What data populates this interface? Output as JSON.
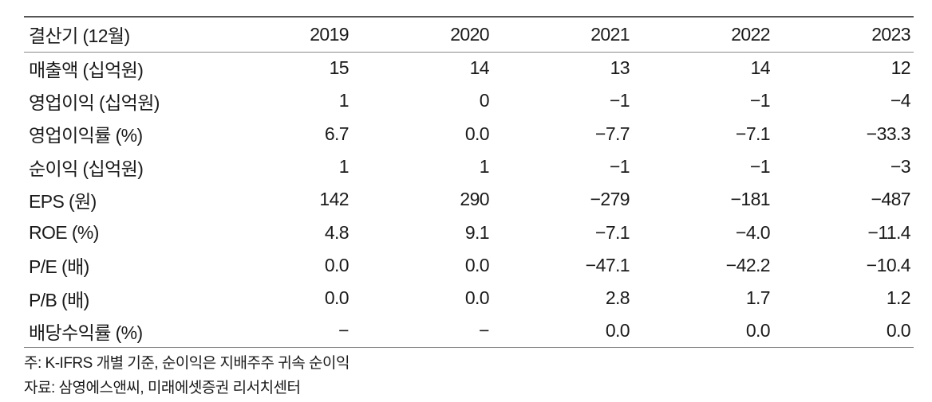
{
  "table": {
    "header": [
      "결산기 (12월)",
      "2019",
      "2020",
      "2021",
      "2022",
      "2023"
    ],
    "rows": [
      [
        "매출액 (십억원)",
        "15",
        "14",
        "13",
        "14",
        "12"
      ],
      [
        "영업이익 (십억원)",
        "1",
        "0",
        "−1",
        "−1",
        "−4"
      ],
      [
        "영업이익률 (%)",
        "6.7",
        "0.0",
        "−7.7",
        "−7.1",
        "−33.3"
      ],
      [
        "순이익 (십억원)",
        "1",
        "1",
        "−1",
        "−1",
        "−3"
      ],
      [
        "EPS (원)",
        "142",
        "290",
        "−279",
        "−181",
        "−487"
      ],
      [
        "ROE (%)",
        "4.8",
        "9.1",
        "−7.1",
        "−4.0",
        "−11.4"
      ],
      [
        "P/E (배)",
        "0.0",
        "0.0",
        "−47.1",
        "−42.2",
        "−10.4"
      ],
      [
        "P/B (배)",
        "0.0",
        "0.0",
        "2.8",
        "1.7",
        "1.2"
      ],
      [
        "배당수익률 (%)",
        "−",
        "−",
        "0.0",
        "0.0",
        "0.0"
      ]
    ]
  },
  "notes": {
    "note": "주: K-IFRS 개별 기준, 순이익은 지배주주 귀속 순이익",
    "source": "자료: 삼영에스앤씨, 미래에셋증권 리서치센터"
  }
}
